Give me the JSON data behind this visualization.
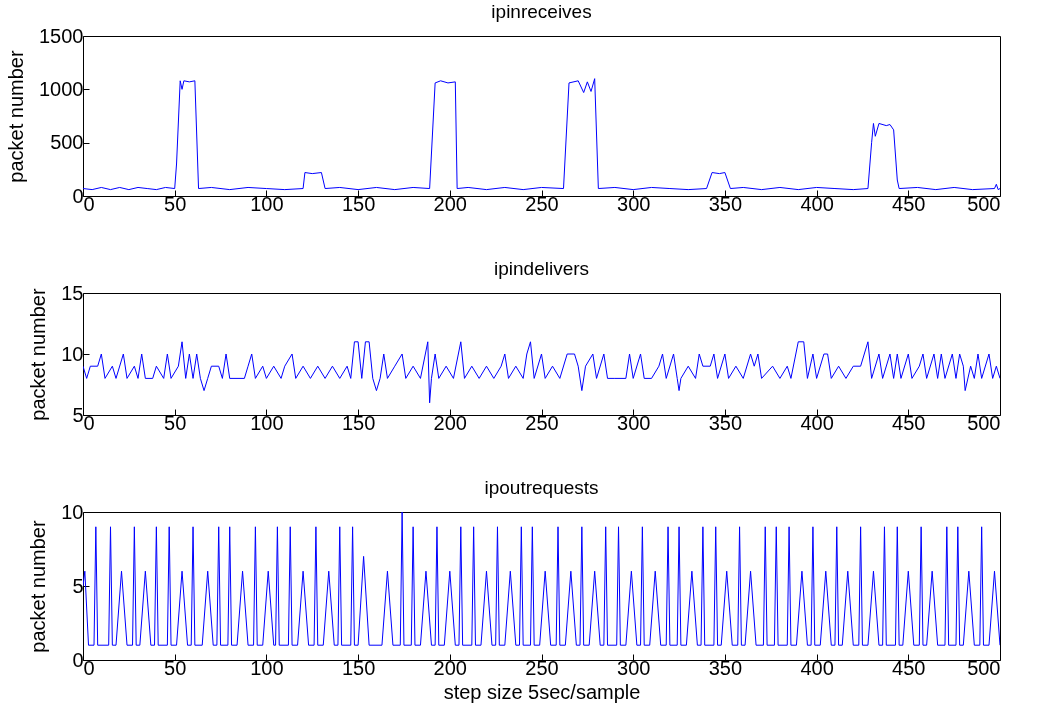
{
  "chart_data": [
    {
      "type": "line",
      "title": "ipinreceives",
      "ylabel": "packet number",
      "xlim": [
        0,
        500
      ],
      "ylim": [
        0,
        1500
      ],
      "xticks": [
        0,
        50,
        100,
        150,
        200,
        250,
        300,
        350,
        400,
        450,
        500
      ],
      "yticks": [
        0,
        500,
        1000,
        1500
      ],
      "series": [
        {
          "color": "#0000ff",
          "x": [
            0,
            5,
            10,
            15,
            20,
            25,
            30,
            35,
            40,
            45,
            50,
            51,
            53,
            54,
            55,
            58,
            61,
            63,
            70,
            80,
            90,
            100,
            110,
            120,
            121,
            125,
            130,
            132,
            140,
            150,
            160,
            170,
            180,
            189,
            192,
            195,
            199,
            203,
            204,
            210,
            220,
            230,
            240,
            250,
            262,
            265,
            270,
            273,
            275,
            277,
            279,
            281,
            290,
            300,
            310,
            320,
            330,
            340,
            343,
            347,
            350,
            353,
            360,
            370,
            380,
            390,
            400,
            410,
            420,
            428,
            430,
            431,
            432,
            434,
            438,
            440,
            442,
            444,
            445,
            455,
            465,
            475,
            485,
            497,
            498,
            499,
            500
          ],
          "values": [
            70,
            60,
            80,
            60,
            80,
            60,
            80,
            70,
            60,
            80,
            70,
            300,
            1080,
            1000,
            1080,
            1070,
            1080,
            70,
            80,
            60,
            80,
            70,
            60,
            70,
            220,
            210,
            220,
            70,
            80,
            60,
            80,
            60,
            80,
            70,
            1060,
            1080,
            1060,
            1070,
            70,
            80,
            60,
            80,
            60,
            80,
            70,
            1060,
            1080,
            970,
            1070,
            980,
            1100,
            70,
            80,
            60,
            80,
            70,
            60,
            70,
            220,
            210,
            220,
            70,
            80,
            60,
            80,
            60,
            80,
            70,
            60,
            70,
            500,
            680,
            560,
            680,
            660,
            670,
            620,
            150,
            70,
            80,
            60,
            80,
            60,
            70,
            110,
            60,
            70
          ]
        }
      ]
    },
    {
      "type": "line",
      "title": "ipindelivers",
      "ylabel": "packet number",
      "xlim": [
        0,
        500
      ],
      "ylim": [
        5,
        15
      ],
      "xticks": [
        0,
        50,
        100,
        150,
        200,
        250,
        300,
        350,
        400,
        450,
        500
      ],
      "yticks": [
        5,
        10,
        15
      ],
      "series": [
        {
          "color": "#0000ff",
          "x": [
            0,
            2,
            4,
            8,
            10,
            12,
            16,
            18,
            22,
            24,
            28,
            30,
            32,
            34,
            38,
            40,
            44,
            46,
            48,
            52,
            54,
            56,
            58,
            60,
            62,
            64,
            66,
            68,
            70,
            74,
            76,
            78,
            80,
            88,
            90,
            92,
            94,
            98,
            100,
            104,
            108,
            110,
            114,
            116,
            120,
            124,
            128,
            132,
            136,
            140,
            144,
            146,
            148,
            150,
            152,
            154,
            156,
            158,
            160,
            162,
            164,
            166,
            170,
            174,
            176,
            180,
            184,
            188,
            189,
            190,
            192,
            194,
            198,
            202,
            206,
            208,
            212,
            216,
            220,
            224,
            228,
            230,
            232,
            236,
            240,
            242,
            244,
            246,
            250,
            252,
            256,
            260,
            264,
            268,
            270,
            272,
            274,
            278,
            280,
            284,
            286,
            290,
            296,
            298,
            300,
            304,
            306,
            310,
            314,
            316,
            318,
            322,
            324,
            325,
            326,
            330,
            334,
            336,
            338,
            342,
            344,
            346,
            350,
            352,
            356,
            360,
            364,
            366,
            368,
            370,
            376,
            380,
            384,
            386,
            390,
            393,
            395,
            398,
            400,
            404,
            406,
            408,
            412,
            416,
            420,
            424,
            428,
            430,
            434,
            436,
            440,
            442,
            444,
            446,
            450,
            452,
            456,
            458,
            460,
            464,
            466,
            468,
            470,
            474,
            476,
            478,
            480,
            481,
            484,
            486,
            488,
            490,
            494,
            496,
            498,
            500
          ],
          "values": [
            9,
            8,
            9,
            9,
            10,
            8,
            9,
            8,
            10,
            8,
            9,
            8,
            10,
            8,
            8,
            9,
            8,
            10,
            8,
            9,
            11,
            8,
            10,
            8,
            10,
            8,
            7,
            8,
            9,
            9,
            8,
            10,
            8,
            8,
            9,
            10,
            8,
            9,
            8,
            9,
            8,
            9,
            10,
            8,
            9,
            8,
            9,
            8,
            9,
            8,
            9,
            8,
            11,
            11,
            8,
            11,
            11,
            8,
            7,
            8,
            10,
            8,
            9,
            10,
            8,
            9,
            8,
            11,
            6,
            8,
            10,
            8,
            9,
            8,
            11,
            8,
            9,
            8,
            9,
            8,
            9,
            10,
            8,
            9,
            8,
            10,
            11,
            8,
            10,
            8,
            9,
            8,
            10,
            10,
            9,
            7,
            9,
            10,
            8,
            10,
            8,
            8,
            8,
            10,
            8,
            10,
            8,
            8,
            9,
            10,
            8,
            10,
            8,
            7,
            8,
            9,
            8,
            10,
            9,
            9,
            10,
            8,
            10,
            8,
            9,
            8,
            10,
            9,
            10,
            8,
            9,
            8,
            9,
            8,
            11,
            11,
            8,
            10,
            8,
            10,
            10,
            8,
            9,
            8,
            9,
            9,
            11,
            8,
            10,
            8,
            10,
            8,
            10,
            8,
            10,
            8,
            9,
            10,
            8,
            10,
            8,
            10,
            8,
            10,
            8,
            10,
            9,
            7,
            9,
            8,
            10,
            8,
            10,
            8,
            9,
            8
          ]
        }
      ]
    },
    {
      "type": "line",
      "title": "ipoutrequests",
      "xlabel": "step size 5sec/sample",
      "ylabel": "packet number",
      "xlim": [
        0,
        500
      ],
      "ylim": [
        0,
        10
      ],
      "xticks": [
        0,
        50,
        100,
        150,
        200,
        250,
        300,
        350,
        400,
        450,
        500
      ],
      "yticks": [
        0,
        5,
        10
      ],
      "series": [
        {
          "color": "#0000ff",
          "x": [
            0,
            1,
            3,
            6,
            7,
            8,
            14,
            15,
            16,
            18,
            21,
            24,
            27,
            28,
            29,
            31,
            34,
            37,
            39,
            40,
            41,
            46,
            47,
            48,
            51,
            54,
            57,
            59,
            60,
            61,
            65,
            68,
            71,
            73,
            74,
            75,
            79,
            80,
            81,
            84,
            87,
            90,
            93,
            94,
            95,
            98,
            101,
            104,
            105,
            106,
            107,
            112,
            113,
            114,
            117,
            120,
            123,
            126,
            127,
            128,
            131,
            134,
            137,
            139,
            140,
            141,
            146,
            147,
            148,
            150,
            153,
            156,
            163,
            166,
            169,
            173,
            174,
            175,
            179,
            180,
            181,
            184,
            187,
            190,
            192,
            193,
            194,
            197,
            200,
            203,
            205,
            206,
            207,
            212,
            213,
            214,
            217,
            220,
            223,
            225,
            226,
            227,
            230,
            233,
            236,
            238,
            239,
            240,
            244,
            245,
            246,
            249,
            252,
            255,
            258,
            259,
            260,
            263,
            266,
            269,
            271,
            272,
            273,
            276,
            279,
            282,
            284,
            285,
            286,
            291,
            292,
            293,
            296,
            299,
            302,
            304,
            305,
            306,
            309,
            312,
            315,
            318,
            319,
            320,
            324,
            325,
            326,
            329,
            332,
            335,
            337,
            338,
            339,
            344,
            345,
            346,
            348,
            351,
            354,
            357,
            358,
            359,
            361,
            364,
            367,
            371,
            372,
            373,
            377,
            378,
            379,
            384,
            385,
            386,
            389,
            392,
            395,
            397,
            398,
            399,
            402,
            405,
            408,
            410,
            411,
            412,
            414,
            417,
            420,
            423,
            424,
            425,
            428,
            431,
            434,
            436,
            437,
            438,
            443,
            444,
            445,
            447,
            450,
            453,
            456,
            457,
            458,
            460,
            463,
            466,
            470,
            471,
            472,
            476,
            477,
            478,
            480,
            483,
            486,
            489,
            490,
            491,
            494,
            497,
            500
          ],
          "values": [
            5,
            6,
            1,
            1,
            9,
            1,
            1,
            9,
            1,
            1,
            6,
            1,
            1,
            9,
            1,
            1,
            6,
            1,
            1,
            9,
            1,
            1,
            9,
            1,
            1,
            6,
            1,
            1,
            9,
            1,
            1,
            6,
            1,
            1,
            9,
            1,
            1,
            9,
            1,
            1,
            6,
            1,
            1,
            9,
            1,
            1,
            6,
            1,
            1,
            9,
            1,
            1,
            9,
            1,
            1,
            6,
            1,
            1,
            9,
            1,
            1,
            6,
            1,
            1,
            9,
            1,
            1,
            9,
            1,
            1,
            7,
            1,
            1,
            6,
            1,
            1,
            10,
            1,
            1,
            9,
            1,
            1,
            6,
            1,
            1,
            9,
            1,
            1,
            6,
            1,
            1,
            9,
            1,
            1,
            9,
            1,
            1,
            6,
            1,
            1,
            9,
            1,
            1,
            6,
            1,
            1,
            9,
            1,
            1,
            9,
            1,
            1,
            6,
            1,
            1,
            9,
            1,
            1,
            6,
            1,
            1,
            9,
            1,
            1,
            6,
            1,
            1,
            9,
            1,
            1,
            9,
            1,
            1,
            6,
            1,
            1,
            9,
            1,
            1,
            6,
            1,
            1,
            9,
            1,
            1,
            9,
            1,
            1,
            6,
            1,
            1,
            9,
            1,
            1,
            9,
            1,
            1,
            6,
            1,
            1,
            9,
            1,
            1,
            6,
            1,
            1,
            9,
            1,
            1,
            9,
            1,
            1,
            9,
            1,
            1,
            6,
            1,
            1,
            9,
            1,
            1,
            6,
            1,
            1,
            9,
            1,
            1,
            6,
            1,
            1,
            9,
            1,
            1,
            6,
            1,
            1,
            9,
            1,
            1,
            9,
            1,
            1,
            6,
            1,
            1,
            9,
            1,
            1,
            6,
            1,
            1,
            9,
            1,
            1,
            9,
            1,
            1,
            6,
            1,
            1,
            9,
            1,
            1,
            6,
            1
          ]
        }
      ]
    }
  ]
}
